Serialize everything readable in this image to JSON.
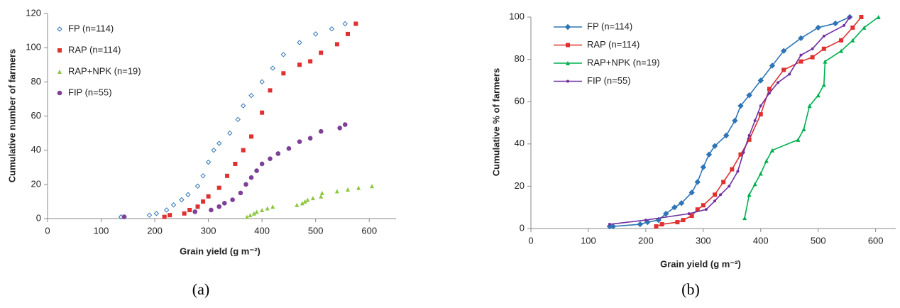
{
  "chart_data": [
    {
      "type": "scatter",
      "panel_label": "(a)",
      "xlabel": "Grain yield (g m⁻²)",
      "ylabel": "Cumulative number of farmers",
      "xlim": [
        0,
        650
      ],
      "ylim": [
        0,
        120
      ],
      "xticks": [
        0,
        100,
        200,
        300,
        400,
        500,
        600
      ],
      "yticks": [
        0,
        20,
        40,
        60,
        80,
        100,
        120
      ],
      "series": [
        {
          "name": "FP (n=114)",
          "color": "#2e75b6",
          "marker": "diamond-open",
          "x": [
            137,
            143,
            190,
            203,
            222,
            235,
            250,
            262,
            280,
            290,
            300,
            310,
            320,
            340,
            355,
            365,
            380,
            400,
            420,
            440,
            470,
            500,
            530,
            555
          ],
          "values": [
            1,
            1,
            2,
            3,
            5,
            8,
            11,
            14,
            19,
            25,
            33,
            40,
            44,
            50,
            58,
            66,
            72,
            80,
            88,
            96,
            103,
            108,
            111,
            114
          ]
        },
        {
          "name": "RAP (n=114)",
          "color": "#e03030",
          "marker": "square",
          "x": [
            218,
            228,
            255,
            265,
            280,
            290,
            300,
            320,
            335,
            350,
            365,
            380,
            400,
            415,
            440,
            470,
            490,
            510,
            540,
            560,
            575
          ],
          "values": [
            1,
            2,
            3,
            5,
            7,
            10,
            13,
            18,
            25,
            32,
            40,
            48,
            62,
            75,
            85,
            90,
            92,
            97,
            102,
            108,
            114
          ]
        },
        {
          "name": "RAP+NPK (n=19)",
          "color": "#8dc63f",
          "marker": "triangle",
          "x": [
            372,
            378,
            385,
            390,
            400,
            410,
            420,
            465,
            475,
            480,
            485,
            495,
            510,
            512,
            540,
            560,
            580,
            605
          ],
          "values": [
            1,
            2,
            3,
            4,
            5,
            6,
            7,
            8,
            9,
            10,
            11,
            12,
            13,
            15,
            16,
            17,
            18,
            19
          ]
        },
        {
          "name": "FIP (n=55)",
          "color": "#7e3f98",
          "marker": "circle",
          "x": [
            143,
            275,
            305,
            320,
            330,
            345,
            360,
            370,
            380,
            390,
            400,
            415,
            430,
            450,
            470,
            490,
            510,
            545,
            555
          ],
          "values": [
            1,
            4,
            5,
            7,
            9,
            11,
            15,
            20,
            24,
            28,
            32,
            35,
            38,
            41,
            45,
            47,
            51,
            53,
            55
          ]
        }
      ]
    },
    {
      "type": "line",
      "panel_label": "(b)",
      "xlabel": "Grain yield (g m⁻²)",
      "ylabel": "Cumulative % of farmers",
      "xlim": [
        0,
        635
      ],
      "ylim": [
        0,
        100
      ],
      "xticks": [
        0,
        100,
        200,
        300,
        400,
        500,
        600
      ],
      "yticks": [
        0,
        20,
        40,
        60,
        80,
        100
      ],
      "series": [
        {
          "name": "FP (n=114)",
          "color": "#2e75b6",
          "marker": "diamond",
          "x": [
            137,
            143,
            190,
            203,
            222,
            235,
            250,
            262,
            280,
            290,
            300,
            310,
            320,
            340,
            355,
            365,
            380,
            400,
            420,
            440,
            470,
            500,
            530,
            555
          ],
          "values": [
            1,
            1,
            2,
            3,
            4,
            7,
            10,
            12,
            17,
            22,
            29,
            35,
            39,
            44,
            51,
            58,
            63,
            70,
            77,
            84,
            90,
            95,
            97,
            100
          ]
        },
        {
          "name": "RAP (n=114)",
          "color": "#e03030",
          "marker": "square",
          "x": [
            218,
            228,
            255,
            265,
            280,
            290,
            300,
            320,
            335,
            350,
            365,
            380,
            400,
            415,
            440,
            470,
            490,
            510,
            540,
            560,
            575
          ],
          "values": [
            1,
            2,
            3,
            4,
            6,
            9,
            11,
            16,
            22,
            28,
            35,
            42,
            54,
            66,
            75,
            79,
            81,
            85,
            89,
            95,
            100
          ]
        },
        {
          "name": "RAP+NPK (n=19)",
          "color": "#00b050",
          "marker": "triangle",
          "x": [
            372,
            380,
            390,
            400,
            410,
            420,
            465,
            475,
            485,
            500,
            510,
            512,
            540,
            560,
            580,
            605
          ],
          "values": [
            5,
            16,
            21,
            26,
            32,
            37,
            42,
            47,
            58,
            63,
            68,
            79,
            84,
            89,
            95,
            100
          ]
        },
        {
          "name": "FIP (n=55)",
          "color": "#7030a0",
          "marker": "circle-small",
          "x": [
            137,
            200,
            275,
            305,
            320,
            330,
            345,
            360,
            370,
            380,
            390,
            400,
            415,
            430,
            450,
            470,
            490,
            510,
            545,
            555
          ],
          "values": [
            2,
            4,
            7,
            9,
            13,
            16,
            20,
            27,
            36,
            44,
            51,
            58,
            64,
            69,
            73,
            82,
            85,
            91,
            96,
            100
          ]
        }
      ]
    }
  ]
}
